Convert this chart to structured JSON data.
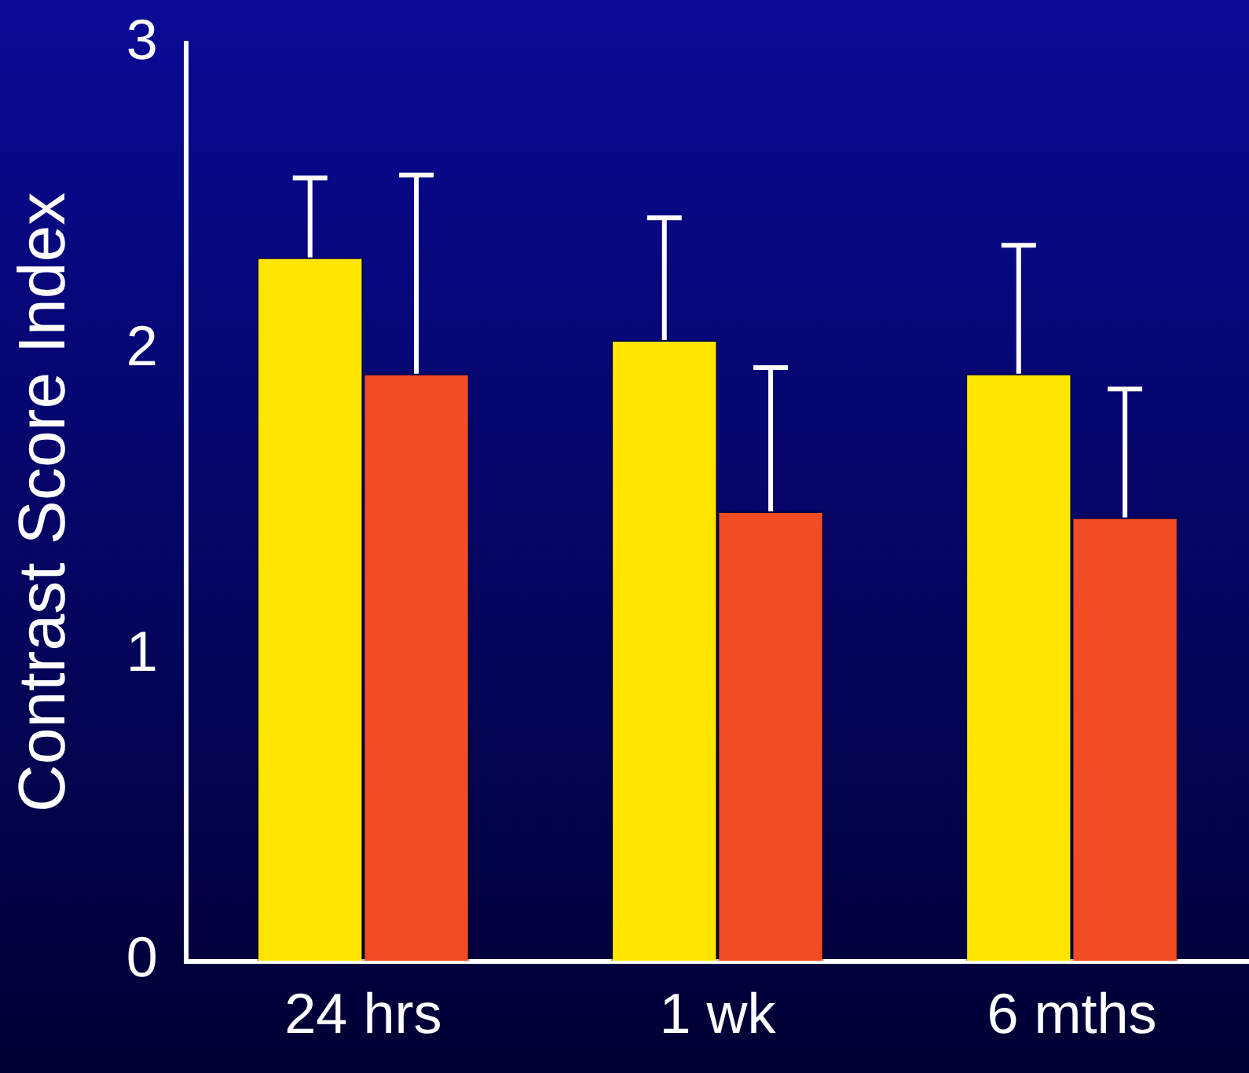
{
  "chart_data": {
    "type": "bar",
    "ylabel": "Contrast Score Index",
    "categories": [
      "24 hrs",
      "1 wk",
      "6 mths"
    ],
    "series": [
      {
        "color": "#ffe600",
        "values": [
          2.3,
          2.03,
          1.92
        ],
        "errors": [
          [
            2.3,
            2.56
          ],
          [
            2.03,
            2.43
          ],
          [
            1.92,
            2.34
          ]
        ]
      },
      {
        "color": "#f24c24",
        "values": [
          1.92,
          1.47,
          1.45
        ],
        "errors": [
          [
            1.92,
            2.57
          ],
          [
            1.47,
            1.94
          ],
          [
            1.45,
            1.87
          ]
        ]
      }
    ],
    "ylim": [
      0,
      3
    ],
    "yticks": [
      0,
      1,
      2,
      3
    ],
    "grid": false,
    "legend": false
  }
}
